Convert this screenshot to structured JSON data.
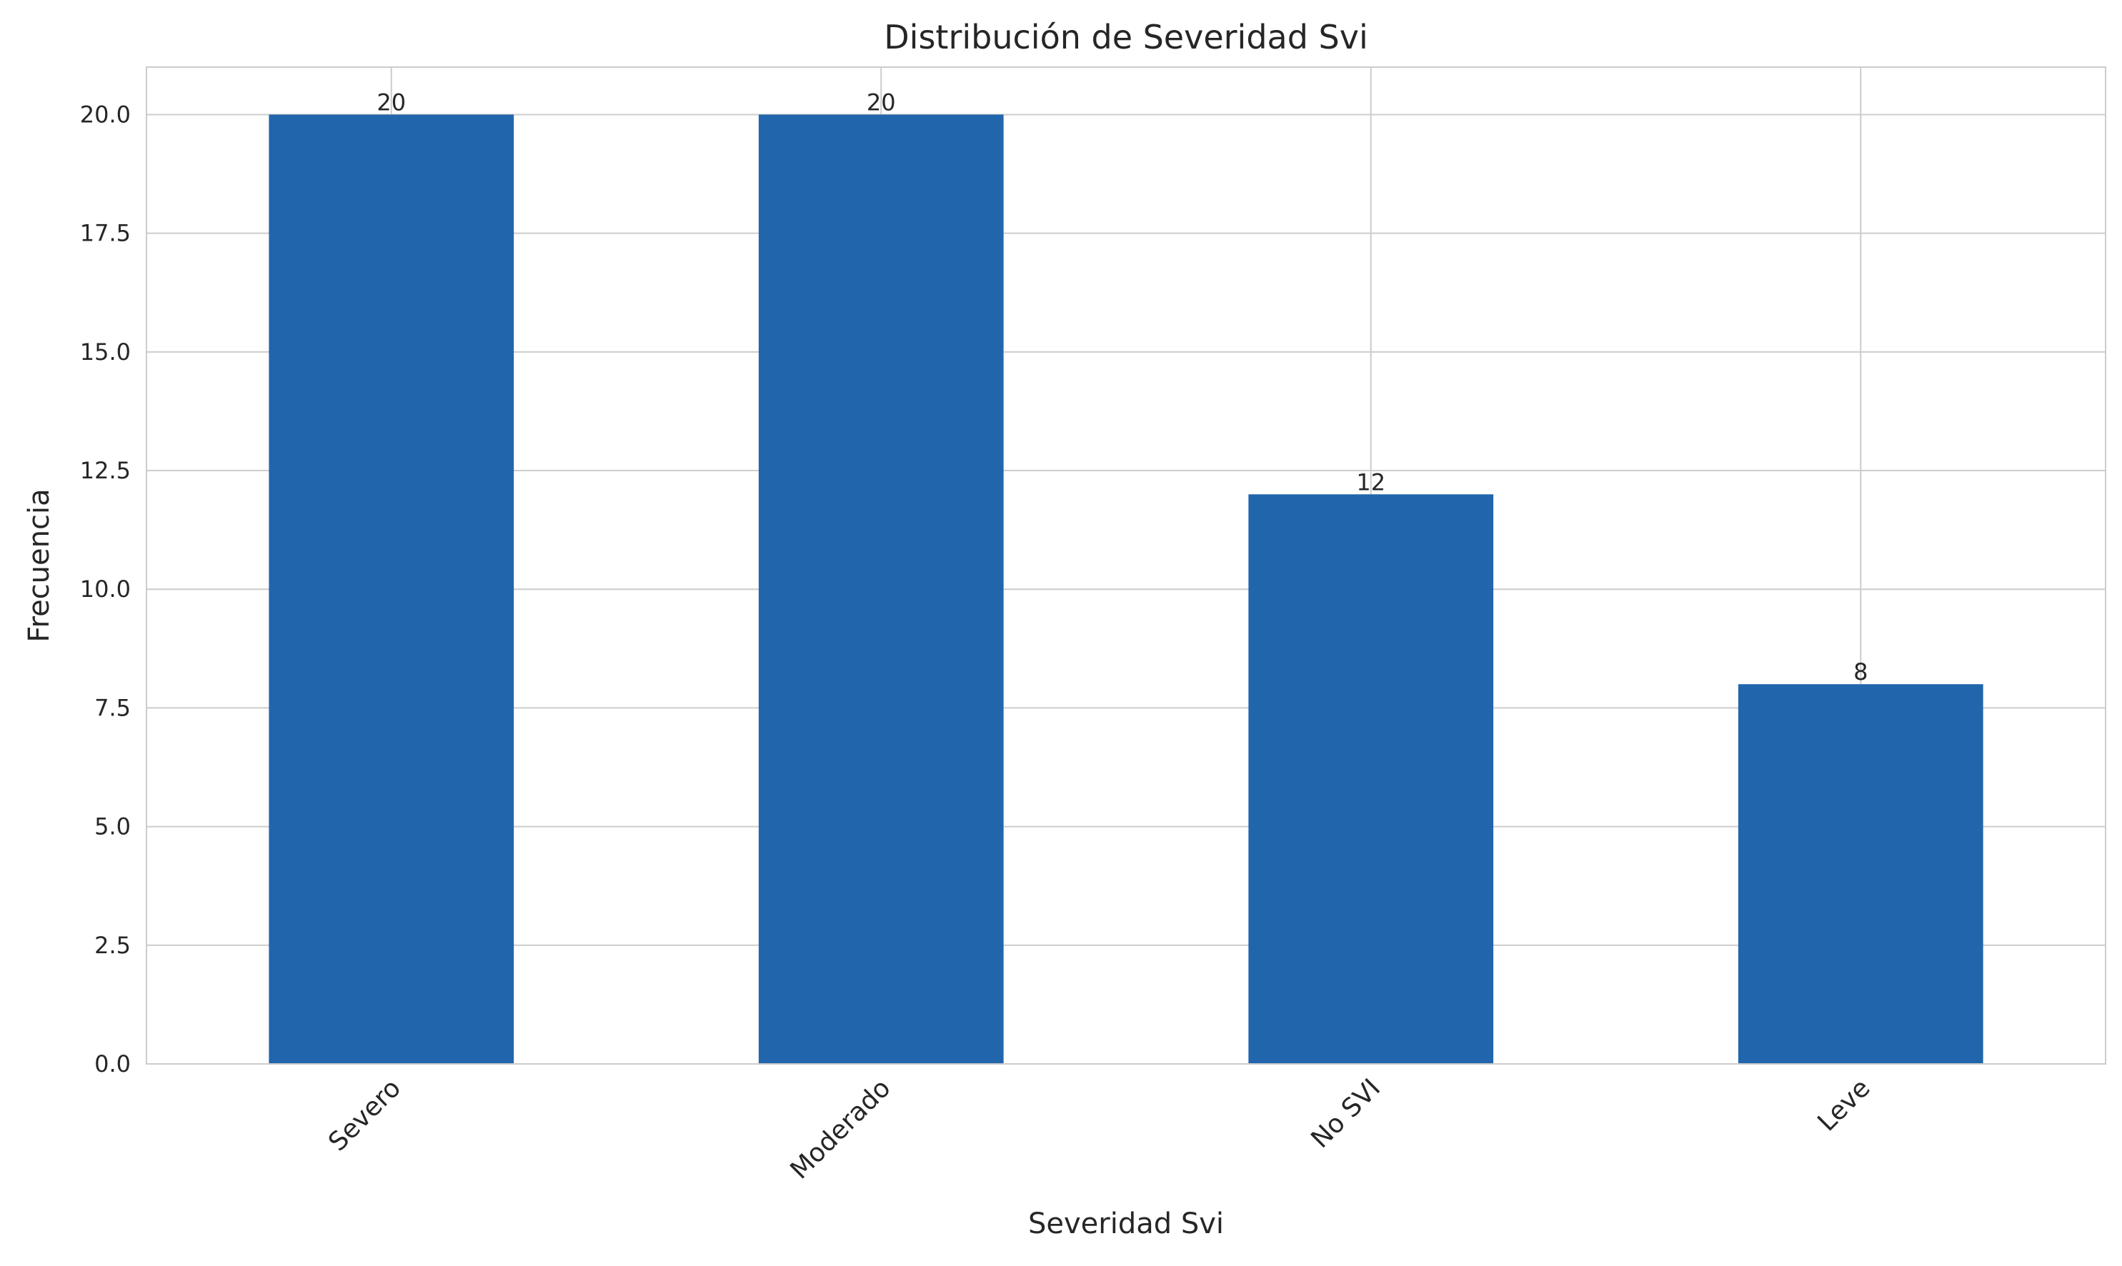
{
  "chart_data": {
    "type": "bar",
    "title": "Distribución de Severidad Svi",
    "xlabel": "Severidad Svi",
    "ylabel": "Frecuencia",
    "categories": [
      "Severo",
      "Moderado",
      "No SVI",
      "Leve"
    ],
    "values": [
      20,
      20,
      12,
      8
    ],
    "data_labels": [
      "20",
      "20",
      "12",
      "8"
    ],
    "ylim": [
      0,
      21
    ],
    "yticks": [
      0.0,
      2.5,
      5.0,
      7.5,
      10.0,
      12.5,
      15.0,
      17.5,
      20.0
    ],
    "ytick_labels": [
      "0.0",
      "2.5",
      "5.0",
      "7.5",
      "10.0",
      "12.5",
      "15.0",
      "17.5",
      "20.0"
    ],
    "grid": true,
    "legend": null,
    "colors": {
      "bar": "#2166ac",
      "grid": "#cccccc",
      "axes_edge": "#cccccc",
      "text": "#262626"
    }
  }
}
